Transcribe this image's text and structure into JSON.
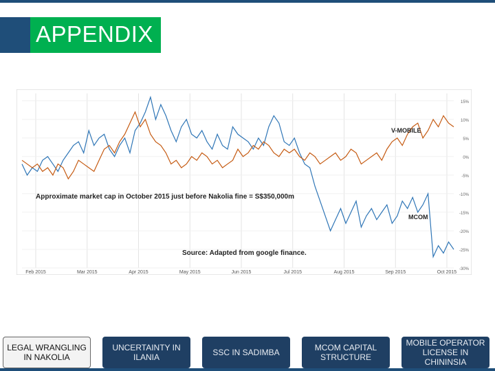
{
  "slide": {
    "title": "APPENDIX"
  },
  "colors": {
    "title_background": "#00b050",
    "title_accent": "#1f4e79",
    "nav_background": "#1f3f63",
    "mcom_series": "#2e75b6",
    "vmobile_series": "#c55a11"
  },
  "nav": {
    "items": [
      {
        "label": "LEGAL WRANGLING IN NAKOLIA",
        "active": true
      },
      {
        "label": "UNCERTAINTY IN ILANIA",
        "active": false
      },
      {
        "label": "SSC IN SADIMBA",
        "active": false
      },
      {
        "label": "MCOM CAPITAL STRUCTURE",
        "active": false
      },
      {
        "label": "MOBILE OPERATOR LICENSE IN CHININSIA",
        "active": false
      }
    ]
  },
  "chart_data": {
    "type": "line",
    "title": "",
    "annotation_market_cap": "Approximate market cap in October 2015 just before Nakolia fine  = S$350,000m",
    "annotation_source": "Source: Adapted from google finance.",
    "x_ticks": [
      "Feb 2015",
      "Mar 2015",
      "Apr 2015",
      "May 2015",
      "Jun 2015",
      "Jul 2015",
      "Aug 2015",
      "Sep 2015",
      "Oct 2015"
    ],
    "y_ticks": [
      "15%",
      "10%",
      "5%",
      "0%",
      "-5%",
      "-10%",
      "-15%",
      "-20%",
      "-25%",
      "-30%"
    ],
    "ylim": [
      -30,
      17
    ],
    "grid": true,
    "series": [
      {
        "name": "MCOM",
        "color": "#2e75b6",
        "values": [
          -2,
          -5,
          -3,
          -4,
          -1,
          0,
          -2,
          -4,
          -1,
          1,
          3,
          4,
          1,
          7,
          3,
          5,
          6,
          2,
          0,
          3,
          5,
          1,
          7,
          9,
          12,
          16,
          10,
          14,
          11,
          7,
          4,
          8,
          10,
          6,
          5,
          7,
          4,
          2,
          6,
          3,
          2,
          8,
          6,
          5,
          4,
          2,
          5,
          3,
          8,
          11,
          9,
          4,
          3,
          5,
          1,
          -2,
          -3,
          -8,
          -12,
          -16,
          -20,
          -17,
          -14,
          -18,
          -15,
          -12,
          -19,
          -16,
          -14,
          -17,
          -15,
          -13,
          -18,
          -16,
          -12,
          -14,
          -11,
          -15,
          -13,
          -10,
          -27,
          -24,
          -26,
          -23,
          -25
        ]
      },
      {
        "name": "V-MOBILE",
        "color": "#c55a11",
        "values": [
          -1,
          -2,
          -3,
          -2,
          -4,
          -3,
          -5,
          -2,
          -3,
          -6,
          -4,
          -1,
          -2,
          -3,
          -4,
          -1,
          2,
          3,
          1,
          4,
          6,
          9,
          12,
          8,
          10,
          6,
          4,
          3,
          1,
          -2,
          -1,
          -3,
          -2,
          0,
          -1,
          1,
          0,
          -2,
          -1,
          -3,
          -2,
          -1,
          2,
          0,
          1,
          3,
          2,
          4,
          3,
          1,
          0,
          2,
          1,
          2,
          0,
          -1,
          1,
          0,
          -2,
          -1,
          0,
          1,
          -1,
          0,
          2,
          1,
          -2,
          -1,
          0,
          1,
          -1,
          2,
          4,
          5,
          3,
          6,
          8,
          9,
          5,
          7,
          10,
          8,
          11,
          9,
          8
        ]
      }
    ]
  }
}
